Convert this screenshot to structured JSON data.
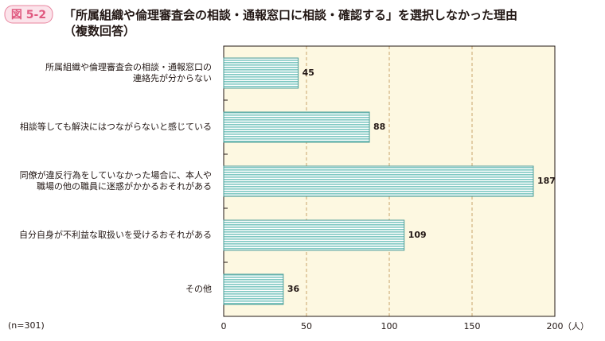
{
  "figure_label": "図 5-2",
  "chart_data": {
    "type": "bar",
    "orientation": "horizontal",
    "title": "「所属組織や倫理審査会の相談・通報窓口に相談・確認する」を選択しなかった理由\n（複数回答）",
    "categories": [
      "所属組織や倫理審査会の相談・通報窓口の\n連絡先が分からない",
      "相談等しても解決にはつながらないと感じている",
      "同僚が違反行為をしていなかった場合に、本人や\n職場の他の職員に迷惑がかかるおそれがある",
      "自分自身が不利益な取扱いを受けるおそれがある",
      "その他"
    ],
    "values": [
      45,
      88,
      187,
      109,
      36
    ],
    "color": "#a9dcd7",
    "xlim": [
      0,
      200
    ],
    "xticks": [
      0,
      50,
      100,
      150,
      200
    ],
    "x_unit": "（人）",
    "note": "(n=301)",
    "grid": true
  }
}
